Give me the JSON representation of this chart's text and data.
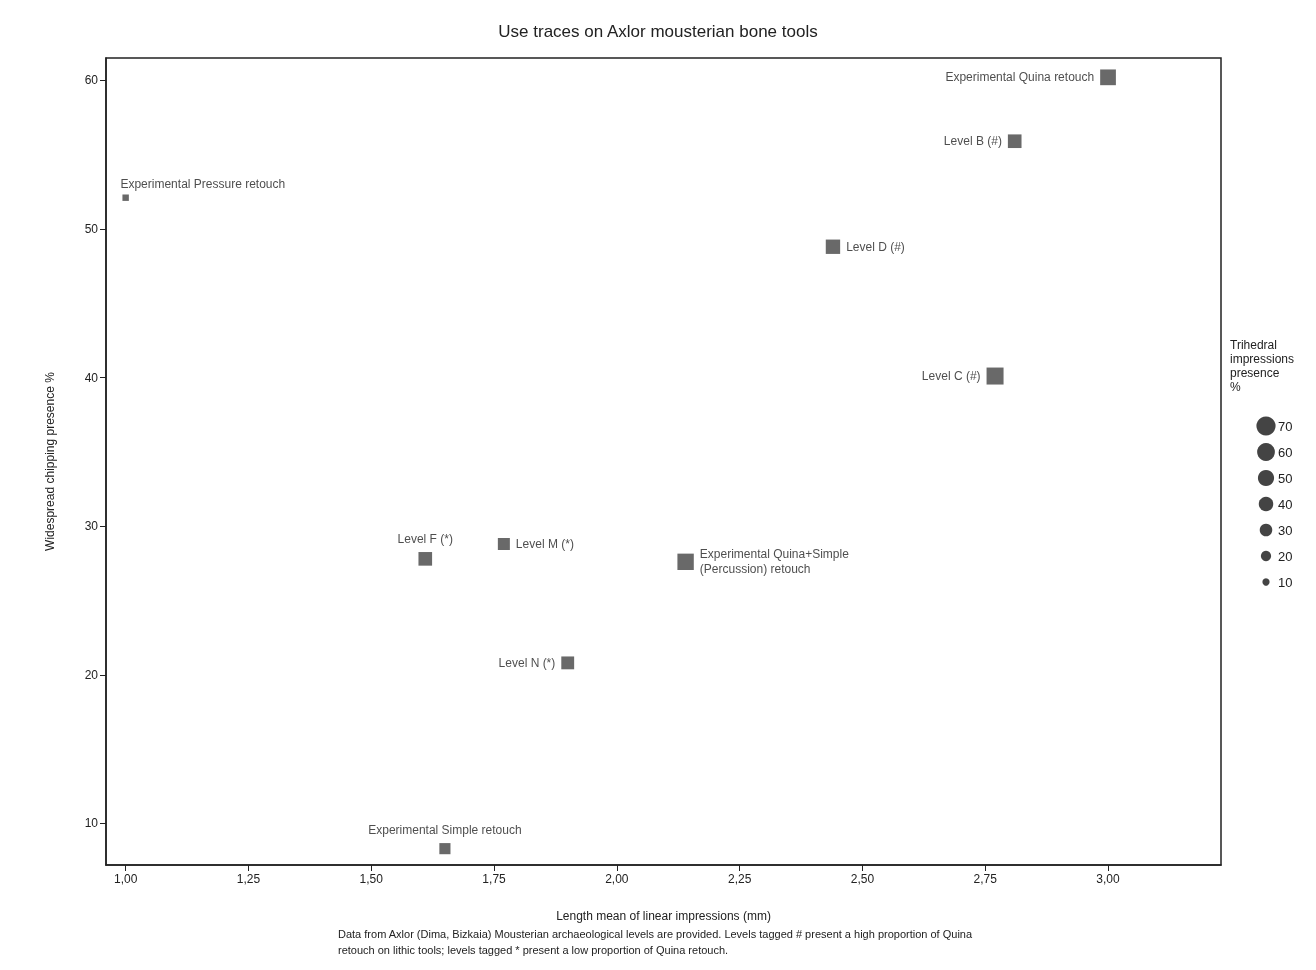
{
  "chart_data": {
    "type": "bubble",
    "title": "Use traces on Axlor mousterian bone tools",
    "xlabel": "Length mean of linear impressions (mm)",
    "ylabel": "Widespread chipping presence %",
    "legend_title": "Trihedral impressions presence %",
    "annotations": [
      "Data from Axlor (Dima, Bizkaia) Mousterian archaeological levels are provided. Levels tagged # present a high proportion of Quina retouch on lithic tools; levels tagged * present a low proportion of Quina retouch."
    ],
    "series": [
      {
        "name": "Experimental Pressure retouch",
        "color": "#444444",
        "x": [
          1.0
        ],
        "values": [
          52.1
        ],
        "sizes": [
          10
        ]
      },
      {
        "name": "Experimental Simple retouch",
        "color": "#444444",
        "x": [
          1.65
        ],
        "values": [
          8.3
        ],
        "sizes": [
          30
        ]
      },
      {
        "name": "Level F (*)",
        "color": "#444444",
        "x": [
          1.61
        ],
        "values": [
          27.8
        ],
        "sizes": [
          45
        ]
      },
      {
        "name": "Level M (*)",
        "color": "#444444",
        "x": [
          1.77
        ],
        "values": [
          28.8
        ],
        "sizes": [
          35
        ]
      },
      {
        "name": "Level N (*)",
        "color": "#444444",
        "x": [
          1.9
        ],
        "values": [
          20.8
        ],
        "sizes": [
          40
        ]
      },
      {
        "name": "Experimental Quina+Simple\n(Percussion) retouch",
        "color": "#444444",
        "x": [
          2.14
        ],
        "values": [
          27.6
        ],
        "sizes": [
          65
        ]
      },
      {
        "name": "Level D (#)",
        "color": "#444444",
        "x": [
          2.44
        ],
        "values": [
          48.8
        ],
        "sizes": [
          50
        ]
      },
      {
        "name": "Level C (#)",
        "color": "#444444",
        "x": [
          2.77
        ],
        "values": [
          40.1
        ],
        "sizes": [
          70
        ]
      },
      {
        "name": "Level B (#)",
        "color": "#444444",
        "x": [
          2.81
        ],
        "values": [
          55.9
        ],
        "sizes": [
          45
        ]
      },
      {
        "name": "Experimental Quina retouch",
        "color": "#444444",
        "x": [
          3.0
        ],
        "values": [
          60.2
        ],
        "sizes": [
          60
        ]
      }
    ],
    "size_legend": [
      70,
      60,
      50,
      40,
      30,
      20,
      10
    ],
    "xlim": [
      0.96,
      3.23
    ],
    "xticks": [
      {
        "value": 1,
        "label": "1,00"
      },
      {
        "value": 1.25,
        "label": "1,25"
      },
      {
        "value": 1.5,
        "label": "1,50"
      },
      {
        "value": 1.75,
        "label": "1,75"
      },
      {
        "value": 2,
        "label": "2,00"
      },
      {
        "value": 2.25,
        "label": "2,25"
      },
      {
        "value": 2.5,
        "label": "2,50"
      },
      {
        "value": 2.75,
        "label": "2,75"
      },
      {
        "value": 3,
        "label": "3,00"
      }
    ],
    "ylim": [
      7.2,
      61.5
    ],
    "yticks": [
      10,
      20,
      30,
      40,
      50,
      60
    ],
    "grid": false,
    "marker": "square"
  }
}
